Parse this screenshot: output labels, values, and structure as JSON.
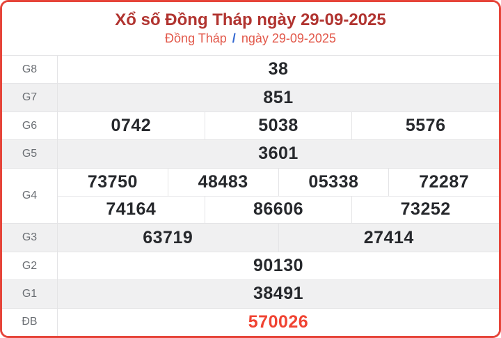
{
  "header": {
    "title": "Xổ số Đồng Tháp ngày 29-09-2025",
    "breadcrumb": {
      "province": "Đồng Tháp",
      "separator": "/",
      "date": "ngày 29-09-2025"
    }
  },
  "colors": {
    "card_border": "#e6453a",
    "title_text": "#b13430",
    "breadcrumb_link": "#e2584a",
    "breadcrumb_separator": "#3468d1",
    "number_text": "#26282c",
    "special_number_text": "#f04332",
    "alt_row_bg": "#f0f0f1",
    "grid_line": "#e4e4e6",
    "label_text": "#6a6e73"
  },
  "table": {
    "rows": [
      {
        "label": "G8",
        "cells": [
          "38"
        ]
      },
      {
        "label": "G7",
        "cells": [
          "851"
        ]
      },
      {
        "label": "G6",
        "cells": [
          "0742",
          "5038",
          "5576"
        ]
      },
      {
        "label": "G5",
        "cells": [
          "3601"
        ]
      },
      {
        "label": "G4",
        "subrows": [
          [
            "73750",
            "48483",
            "05338",
            "72287"
          ],
          [
            "74164",
            "86606",
            "73252"
          ]
        ]
      },
      {
        "label": "G3",
        "cells": [
          "63719",
          "27414"
        ]
      },
      {
        "label": "G2",
        "cells": [
          "90130"
        ]
      },
      {
        "label": "G1",
        "cells": [
          "38491"
        ]
      },
      {
        "label": "ĐB",
        "cells": [
          "570026"
        ],
        "special": true
      }
    ]
  }
}
